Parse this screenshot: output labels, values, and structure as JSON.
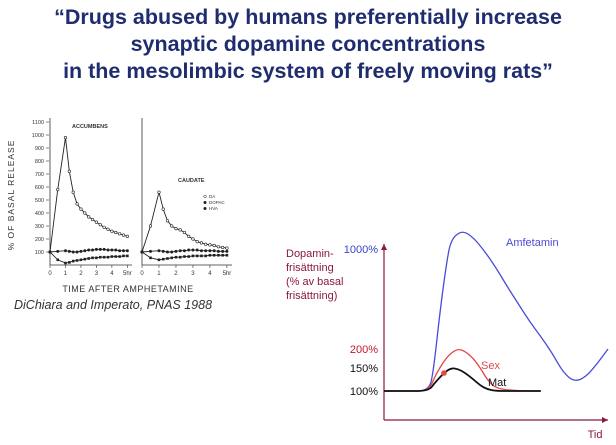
{
  "title_lines": [
    "“Drugs abused by humans preferentially increase",
    "synaptic dopamine concentrations",
    "in the mesolimbic system of freely moving rats”"
  ],
  "citation": "DiChiara and Imperato, PNAS 1988",
  "colors": {
    "title": "#1f2d6e",
    "amfetamin": "#4b4bd8",
    "sex": "#e04848",
    "mat": "#111111",
    "dot": "#e04848",
    "axis": "#8a1a3a",
    "ylabel": "#8a1a3a",
    "tick_red": "#c0182a",
    "tick_blue": "#3344cc",
    "tick_black": "#111111"
  },
  "chart_data": [
    {
      "type": "line",
      "title": "ACCUMBENS",
      "ylabel": "% OF BASAL RELEASE",
      "xlabel": "TIME AFTER AMPHETAMINE",
      "x_tick_labels": [
        "0",
        "1",
        "2",
        "3",
        "4",
        "5hr"
      ],
      "y_tick_labels": [
        "100",
        "200",
        "300",
        "400",
        "500",
        "600",
        "700",
        "800",
        "900",
        "1000",
        "1100"
      ],
      "ylim": [
        0,
        1100
      ],
      "xlim": [
        0,
        5.3
      ],
      "series": [
        {
          "x": [
            0.0,
            0.5,
            1.0,
            1.25,
            1.5,
            1.75,
            2.0,
            2.25,
            2.5,
            2.75,
            3.0,
            3.25,
            3.5,
            3.75,
            4.0,
            4.25,
            4.5,
            4.75,
            5.0
          ],
          "values": [
            100,
            580,
            980,
            720,
            560,
            470,
            430,
            400,
            370,
            350,
            330,
            310,
            290,
            275,
            260,
            250,
            240,
            230,
            220
          ]
        },
        {
          "x": [
            0.0,
            0.5,
            1.0,
            1.25,
            1.5,
            1.75,
            2.0,
            2.25,
            2.5,
            2.75,
            3.0,
            3.25,
            3.5,
            3.75,
            4.0,
            4.25,
            4.5,
            4.75,
            5.0
          ],
          "values": [
            100,
            105,
            110,
            105,
            100,
            100,
            105,
            110,
            115,
            115,
            120,
            120,
            120,
            115,
            115,
            115,
            110,
            110,
            110
          ]
        },
        {
          "x": [
            0.0,
            0.5,
            1.0,
            1.25,
            1.5,
            1.75,
            2.0,
            2.25,
            2.5,
            2.75,
            3.0,
            3.25,
            3.5,
            3.75,
            4.0,
            4.25,
            4.5,
            4.75,
            5.0
          ],
          "values": [
            100,
            40,
            15,
            20,
            30,
            35,
            40,
            45,
            50,
            55,
            55,
            60,
            60,
            60,
            65,
            65,
            65,
            70,
            70
          ]
        }
      ]
    },
    {
      "type": "line",
      "title": "CAUDATE",
      "legend": [
        "DA",
        "DOPAC",
        "HVA"
      ],
      "xlabel": "",
      "x_tick_labels": [
        "0",
        "1",
        "2",
        "3",
        "4",
        "5hr"
      ],
      "ylim": [
        0,
        1100
      ],
      "xlim": [
        0,
        5.3
      ],
      "series": [
        {
          "x": [
            0.0,
            0.5,
            1.0,
            1.25,
            1.5,
            1.75,
            2.0,
            2.25,
            2.5,
            2.75,
            3.0,
            3.25,
            3.5,
            3.75,
            4.0,
            4.25,
            4.5,
            4.75,
            5.0
          ],
          "values": [
            100,
            300,
            560,
            430,
            340,
            300,
            280,
            270,
            250,
            220,
            200,
            180,
            170,
            160,
            155,
            150,
            140,
            135,
            130
          ]
        },
        {
          "x": [
            0.0,
            0.5,
            1.0,
            1.25,
            1.5,
            1.75,
            2.0,
            2.25,
            2.5,
            2.75,
            3.0,
            3.25,
            3.5,
            3.75,
            4.0,
            4.25,
            4.5,
            4.75,
            5.0
          ],
          "values": [
            100,
            105,
            110,
            105,
            100,
            100,
            105,
            110,
            110,
            115,
            115,
            115,
            110,
            110,
            110,
            110,
            105,
            105,
            105
          ]
        },
        {
          "x": [
            0.0,
            0.5,
            1.0,
            1.25,
            1.5,
            1.75,
            2.0,
            2.25,
            2.5,
            2.75,
            3.0,
            3.25,
            3.5,
            3.75,
            4.0,
            4.25,
            4.5,
            4.75,
            5.0
          ],
          "values": [
            100,
            55,
            40,
            45,
            50,
            55,
            60,
            60,
            65,
            65,
            70,
            70,
            70,
            70,
            75,
            75,
            75,
            75,
            75
          ]
        }
      ]
    },
    {
      "type": "line",
      "title": "",
      "ylabel": "Dopamin-\nfrisättning\n(% av basal\nfrisättning)",
      "ylabel_lines": [
        "Dopamin-",
        "frisättning",
        "(% av basal",
        "frisättning)"
      ],
      "xlabel": "Tid",
      "y_tick_labels": [
        "1000%",
        "200%",
        "150%",
        "100%"
      ],
      "y_ticks": [
        1000,
        200,
        150,
        100
      ],
      "series_labels": [
        "Amfetamin",
        "Sex",
        "Mat"
      ],
      "series": [
        {
          "name": "Amfetamin",
          "x": [
            0,
            0.1,
            0.2,
            0.22,
            0.25,
            0.28,
            0.3,
            0.35,
            0.4,
            0.45,
            0.5,
            0.55,
            0.6,
            0.65,
            0.7,
            0.75,
            0.8,
            0.85,
            0.9,
            0.95,
            1.0
          ],
          "values": [
            100,
            100,
            100,
            140,
            500,
            900,
            1080,
            1150,
            1090,
            980,
            850,
            700,
            560,
            420,
            300,
            190,
            140,
            120,
            130,
            160,
            200
          ]
        },
        {
          "name": "Sex",
          "x": [
            0,
            0.1,
            0.2,
            0.23,
            0.27,
            0.3,
            0.33,
            0.36,
            0.4,
            0.43,
            0.46,
            0.5,
            0.6,
            0.7
          ],
          "values": [
            100,
            100,
            100,
            135,
            170,
            190,
            200,
            195,
            175,
            150,
            125,
            105,
            100,
            100
          ]
        },
        {
          "name": "Mat",
          "x": [
            0,
            0.1,
            0.2,
            0.23,
            0.27,
            0.3,
            0.33,
            0.36,
            0.4,
            0.43,
            0.46,
            0.5,
            0.6,
            0.7
          ],
          "values": [
            100,
            100,
            100,
            120,
            140,
            150,
            148,
            140,
            125,
            112,
            104,
            100,
            100,
            100
          ]
        }
      ]
    }
  ]
}
